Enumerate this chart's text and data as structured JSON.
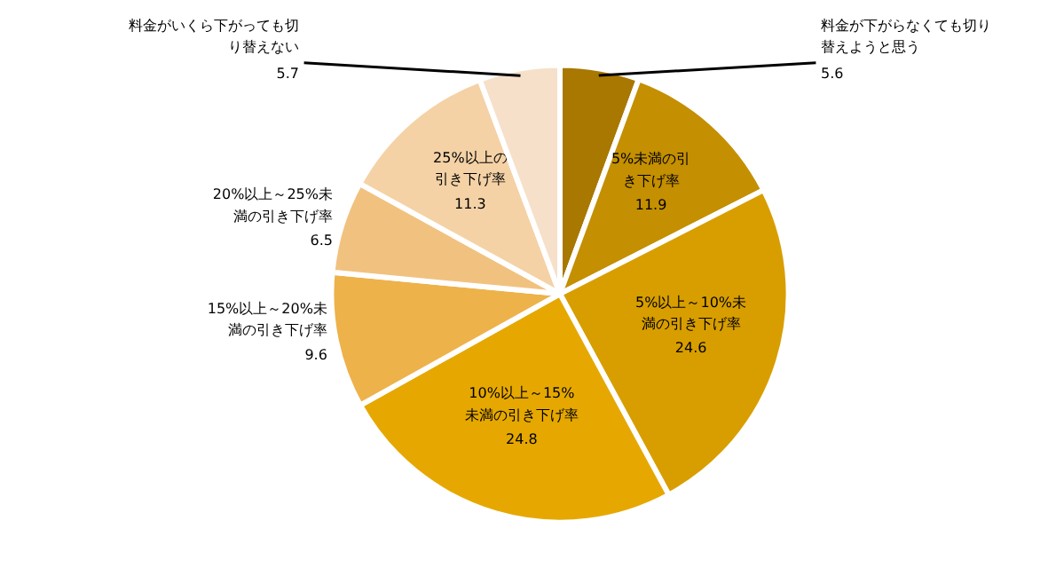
{
  "chart_data": {
    "type": "pie",
    "categories": [
      "料金が下がらなくても切り替えようと思う",
      "5%未満の引き下げ率",
      "5%以上～10%未満の引き下げ率",
      "10%以上～15%未満の引き下げ率",
      "15%以上～20%未満の引き下げ率",
      "20%以上～25%未満の引き下げ率",
      "25%以上の引き下げ率",
      "料金がいくら下がっても切り替えない"
    ],
    "values": [
      5.6,
      11.9,
      24.6,
      24.8,
      9.6,
      6.5,
      11.3,
      5.7
    ],
    "colors": [
      "#a97800",
      "#c48f00",
      "#d89e00",
      "#e6a800",
      "#eeb24a",
      "#f1c27f",
      "#f4d2a6",
      "#f6e0c9"
    ],
    "data_labels": true
  }
}
